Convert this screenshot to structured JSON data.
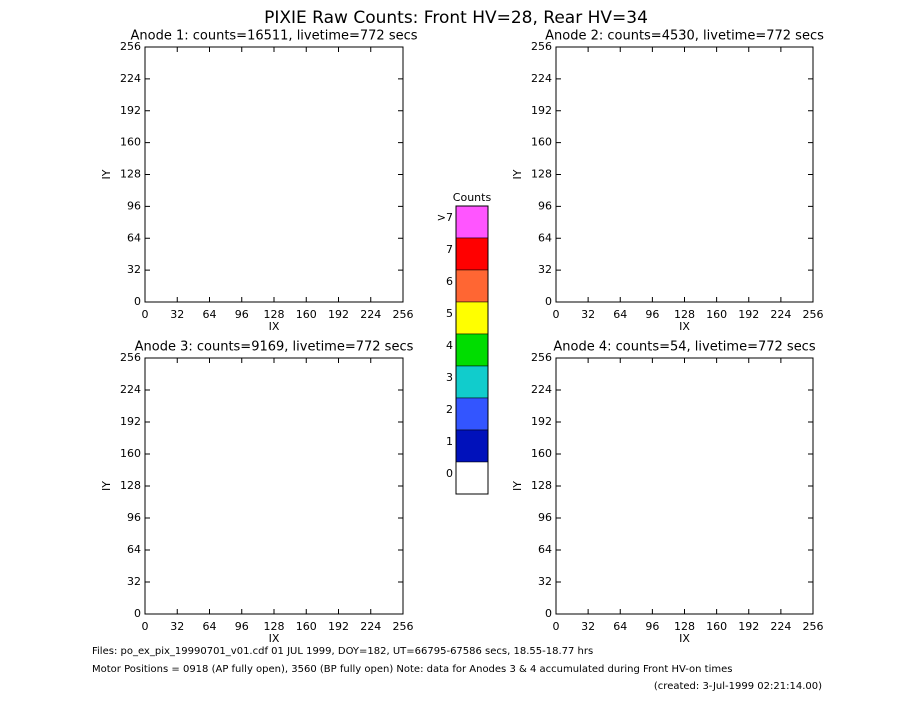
{
  "title": "PIXIE Raw Counts:  Front HV=28, Rear HV=34",
  "chart_data": [
    {
      "type": "image",
      "title": "Anode 1: counts=16511, livetime=772 secs",
      "xlabel": "IX",
      "ylabel": "IY",
      "xlim": [
        0,
        256
      ],
      "ylim": [
        0,
        256
      ],
      "xticks": [
        0,
        32,
        64,
        96,
        128,
        160,
        192,
        224,
        256
      ],
      "yticks": [
        0,
        32,
        64,
        96,
        128,
        160,
        192,
        224,
        256
      ]
    },
    {
      "type": "image",
      "title": "Anode 2: counts=4530, livetime=772 secs",
      "xlabel": "IX",
      "ylabel": "IY",
      "xlim": [
        0,
        256
      ],
      "ylim": [
        0,
        256
      ],
      "xticks": [
        0,
        32,
        64,
        96,
        128,
        160,
        192,
        224,
        256
      ],
      "yticks": [
        0,
        32,
        64,
        96,
        128,
        160,
        192,
        224,
        256
      ]
    },
    {
      "type": "image",
      "title": "Anode 3: counts=9169, livetime=772 secs",
      "xlabel": "IX",
      "ylabel": "IY",
      "xlim": [
        0,
        256
      ],
      "ylim": [
        0,
        256
      ],
      "xticks": [
        0,
        32,
        64,
        96,
        128,
        160,
        192,
        224,
        256
      ],
      "yticks": [
        0,
        32,
        64,
        96,
        128,
        160,
        192,
        224,
        256
      ]
    },
    {
      "type": "image",
      "title": "Anode 4: counts=54, livetime=772 secs",
      "xlabel": "IX",
      "ylabel": "IY",
      "xlim": [
        0,
        256
      ],
      "ylim": [
        0,
        256
      ],
      "xticks": [
        0,
        32,
        64,
        96,
        128,
        160,
        192,
        224,
        256
      ],
      "yticks": [
        0,
        32,
        64,
        96,
        128,
        160,
        192,
        224,
        256
      ]
    }
  ],
  "colorbar": {
    "title": "Counts",
    "categories": [
      ">7",
      "7",
      "6",
      "5",
      "4",
      "3",
      "2",
      "1",
      "0"
    ],
    "colors": [
      "#ff55ff",
      "#ff0000",
      "#ff6633",
      "#ffff00",
      "#00dd00",
      "#11cccc",
      "#3355ff",
      "#0011bb",
      "#ffffff"
    ]
  },
  "footer": [
    "Files: po_ex_pix_19990701_v01.cdf    01 JUL 1999, DOY=182, UT=66795-67586 secs, 18.55-18.77 hrs",
    "Motor Positions = 0918 (AP fully open), 3560 (BP fully open)    Note: data for Anodes 3 & 4 accumulated during Front HV-on times",
    "(created:  3-Jul-1999 02:21:14.00)"
  ]
}
